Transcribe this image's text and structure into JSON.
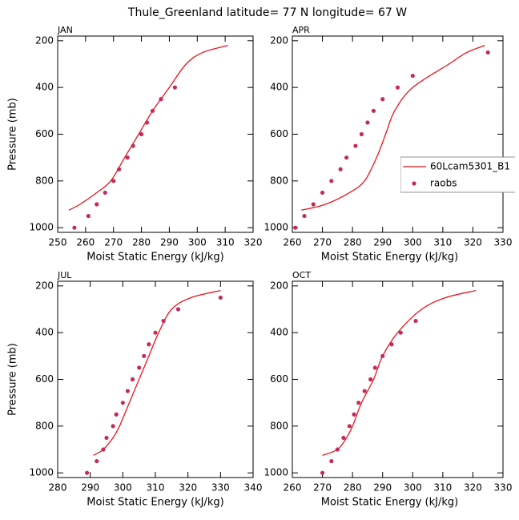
{
  "title": "Thule_Greenland  latitude= 77 N longitude= 67 W",
  "chart_data": [
    {
      "type": "line",
      "title": "JAN",
      "xlabel": "Moist Static Energy (kJ/kg)",
      "ylabel": "Pressure (mb)",
      "xlim": [
        250,
        320
      ],
      "xticks": [
        250,
        260,
        270,
        280,
        290,
        300,
        310,
        320
      ],
      "ylim": [
        1020,
        180
      ],
      "yticks": [
        200,
        400,
        600,
        800,
        1000
      ],
      "series": [
        {
          "color": "#e8141e",
          "mode": "line",
          "x": [
            254,
            258,
            264,
            269,
            274,
            279,
            284,
            290,
            296,
            302,
            311
          ],
          "values": [
            925,
            900,
            850,
            800,
            700,
            600,
            500,
            400,
            300,
            250,
            220
          ]
        },
        {
          "color": "#c42a5a",
          "mode": "markers",
          "x": [
            256,
            261,
            264,
            267,
            270,
            272,
            275,
            277,
            280,
            282,
            284,
            287,
            292
          ],
          "values": [
            1000,
            950,
            900,
            850,
            800,
            750,
            700,
            650,
            600,
            550,
            500,
            450,
            400
          ]
        }
      ]
    },
    {
      "type": "line",
      "title": "APR",
      "xlabel": "Moist Static Energy (kJ/kg)",
      "xlim": [
        260,
        330
      ],
      "xticks": [
        260,
        270,
        280,
        290,
        300,
        310,
        320,
        330
      ],
      "ylim": [
        1020,
        180
      ],
      "yticks": [
        200,
        400,
        600,
        800,
        1000
      ],
      "legend": "right",
      "series": [
        {
          "name": "60Lcam5301_B1",
          "color": "#e8141e",
          "mode": "line",
          "x": [
            263,
            271,
            279,
            284,
            288,
            291,
            294,
            300,
            312,
            318,
            324
          ],
          "values": [
            925,
            900,
            850,
            800,
            700,
            600,
            500,
            400,
            300,
            250,
            220
          ]
        },
        {
          "name": "raobs",
          "color": "#c42a5a",
          "mode": "markers",
          "x": [
            261,
            264,
            267,
            270,
            273,
            276,
            278,
            281,
            283,
            285,
            287,
            290,
            295,
            300,
            325
          ],
          "values": [
            1000,
            950,
            900,
            850,
            800,
            750,
            700,
            650,
            600,
            550,
            500,
            450,
            400,
            350,
            250
          ]
        }
      ]
    },
    {
      "type": "line",
      "title": "JUL",
      "xlabel": "Moist Static Energy (kJ/kg)",
      "ylabel": "Pressure (mb)",
      "xlim": [
        280,
        340
      ],
      "xticks": [
        280,
        290,
        300,
        310,
        320,
        330,
        340
      ],
      "ylim": [
        1020,
        180
      ],
      "yticks": [
        200,
        400,
        600,
        800,
        1000
      ],
      "series": [
        {
          "color": "#e8141e",
          "mode": "line",
          "x": [
            291,
            294,
            297,
            299,
            302,
            305,
            308,
            311,
            315,
            321,
            330
          ],
          "values": [
            925,
            900,
            850,
            800,
            700,
            600,
            500,
            400,
            300,
            250,
            220
          ]
        },
        {
          "color": "#c42a5a",
          "mode": "markers",
          "x": [
            289,
            292,
            294,
            295,
            297,
            298,
            300,
            301.5,
            303,
            305,
            306.5,
            308,
            310,
            312.5,
            317,
            330
          ],
          "values": [
            1000,
            950,
            900,
            850,
            800,
            750,
            700,
            650,
            600,
            550,
            500,
            450,
            400,
            350,
            300,
            250
          ]
        }
      ]
    },
    {
      "type": "line",
      "title": "OCT",
      "xlabel": "Moist Static Energy (kJ/kg)",
      "xlim": [
        260,
        330
      ],
      "xticks": [
        260,
        270,
        280,
        290,
        300,
        310,
        320,
        330
      ],
      "ylim": [
        1020,
        180
      ],
      "yticks": [
        200,
        400,
        600,
        800,
        1000
      ],
      "series": [
        {
          "color": "#e8141e",
          "mode": "line",
          "x": [
            270,
            275,
            278,
            280,
            283,
            287,
            290,
            295,
            303,
            311,
            321
          ],
          "values": [
            925,
            900,
            850,
            800,
            700,
            600,
            500,
            400,
            300,
            250,
            220
          ]
        },
        {
          "color": "#c42a5a",
          "mode": "markers",
          "x": [
            270,
            273,
            275,
            277,
            279,
            280.5,
            282,
            284,
            286,
            287.5,
            290,
            293,
            296,
            301
          ],
          "values": [
            1000,
            950,
            900,
            850,
            800,
            750,
            700,
            650,
            600,
            550,
            500,
            450,
            400,
            350
          ]
        }
      ]
    }
  ]
}
